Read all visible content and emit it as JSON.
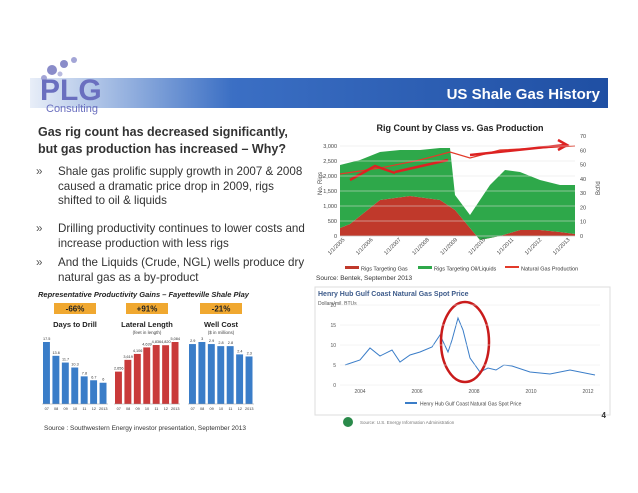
{
  "logo": {
    "name": "PLG",
    "sub": "Consulting"
  },
  "header": {
    "title": "US Shale Gas History"
  },
  "content": {
    "heading": "Gas rig count has decreased significantly, but gas production has increased – Why?",
    "bullets": [
      "Shale gas prolific supply growth in 2007 & 2008 caused a dramatic price drop in 2009, rigs shifted to oil & liquids",
      "Drilling productivity continues to lower costs and increase production with less rigs",
      "And the Liquids (Crude, NGL) wells produce dry natural gas as a by-product"
    ]
  },
  "productivity": {
    "title": "Representative Productivity Gains – Fayetteville Shale Play",
    "source": "Source : Southwestern Energy investor presentation, September 2013",
    "years": [
      "07",
      "08",
      "09",
      "10",
      "11",
      "12",
      "2013"
    ],
    "groups": [
      {
        "change": "-66%",
        "name": "Days to Drill",
        "unit": null,
        "color": "#3a7dc8",
        "values": [
          17.5,
          13.6,
          11.7,
          10.3,
          7.8,
          6.7,
          6.0
        ]
      },
      {
        "change": "+91%",
        "name": "Lateral Length",
        "unit": "(feet in length)",
        "color": "#c93a3a",
        "values": [
          2656,
          3619,
          4106,
          4639,
          4836,
          4820,
          5084
        ],
        "value_labels": [
          "2,656",
          "3,619",
          "4,106",
          "4,639",
          "4,836",
          "4,820",
          "5,084"
        ]
      },
      {
        "change": "-21%",
        "name": "Well Cost",
        "unit": "($ in millions)",
        "color": "#3a7dc8",
        "values": [
          2.9,
          3.0,
          2.9,
          2.8,
          2.8,
          2.4,
          2.3
        ]
      }
    ]
  },
  "rig_chart": {
    "title": "Rig Count by Class vs. Gas Production",
    "y_label": "No. Rigs",
    "y2_label": "Bcf/d",
    "yticks": [
      "0",
      "500",
      "1,000",
      "1,500",
      "2,000",
      "2,500",
      "3,000"
    ],
    "y2ticks": [
      "0",
      "10",
      "20",
      "30",
      "40",
      "50",
      "60",
      "70"
    ],
    "xticks": [
      "1/1/2005",
      "1/1/2006",
      "1/1/2007",
      "1/1/2008",
      "1/1/2009",
      "1/1/2010",
      "1/1/2011",
      "1/1/2012",
      "1/1/2013"
    ],
    "legend": [
      "Rigs Targeting Gas",
      "Rigs Targeting Oil/Liquids",
      "Natural Gas Production"
    ],
    "source": "Source: Bentek, September 2013"
  },
  "price_chart": {
    "title": "Henry Hub Gulf Coast Natural Gas Spot Price",
    "unit": "Dollars/mil. BTUs",
    "yticks": [
      "0",
      "5",
      "10",
      "15",
      "20"
    ],
    "xticks": [
      "2004",
      "2006",
      "2008",
      "2010",
      "2012"
    ],
    "legend": "Henry Hub Gulf Coast Natural Gas Spot Price",
    "source": "Source: U.S. Energy Information Administration"
  },
  "footer": {
    "page": "4"
  }
}
